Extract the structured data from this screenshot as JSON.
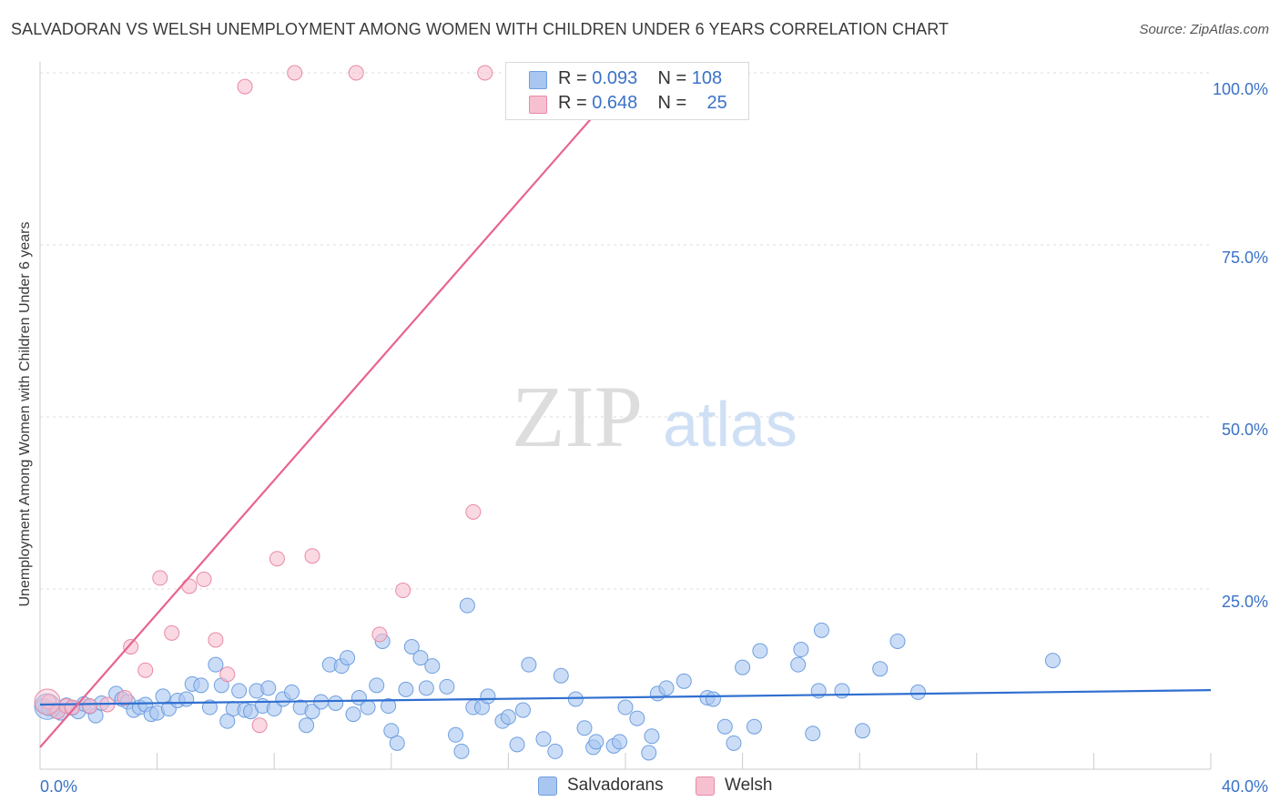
{
  "title": "SALVADORAN VS WELSH UNEMPLOYMENT AMONG WOMEN WITH CHILDREN UNDER 6 YEARS CORRELATION CHART",
  "source": "Source: ZipAtlas.com",
  "watermark": {
    "zip": "ZIP",
    "atlas": "atlas"
  },
  "legend": {
    "rows": [
      {
        "r_label": "R = ",
        "r_value": "0.093",
        "n_label": "N = ",
        "n_value": "108",
        "color": "#a9c6f0",
        "border": "#6f9fe0"
      },
      {
        "r_label": "R = ",
        "r_value": "0.648",
        "n_label": "N = ",
        "n_value": "25",
        "color": "#f7c0d0",
        "border": "#e88aa6"
      }
    ]
  },
  "bottom_legend": [
    {
      "label": "Salvadorans",
      "color": "#a9c6f0",
      "border": "#6f9fe0"
    },
    {
      "label": "Welsh",
      "color": "#f7c0d0",
      "border": "#e88aa6"
    }
  ],
  "colors": {
    "blue_line": "#2f6fd0",
    "pink_line": "#e8648e",
    "tick_text": "#3a72c8",
    "grid": "#dcdcdc"
  },
  "chart_data": {
    "type": "scatter",
    "xlabel": "",
    "ylabel": "Unemployment Among Women with Children Under 6 years",
    "xlim": [
      0,
      40
    ],
    "ylim": [
      0,
      100
    ],
    "x_tick_labels": [
      {
        "value": 0,
        "label": "0.0%"
      },
      {
        "value": 40,
        "label": "40.0%"
      }
    ],
    "y_tick_labels": [
      {
        "value": 100,
        "label": "100.0%"
      },
      {
        "value": 75,
        "label": "75.0%"
      },
      {
        "value": 50,
        "label": "50.0%"
      },
      {
        "value": 25,
        "label": "25.0%"
      }
    ],
    "grid": true,
    "series": [
      {
        "name": "Salvadorans",
        "color": "#a9c6f0",
        "trend": {
          "x": [
            0,
            40
          ],
          "y": [
            8.2,
            10.3
          ]
        },
        "points": [
          [
            0.2,
            7.8
          ],
          [
            0.5,
            7.4
          ],
          [
            0.7,
            7.0
          ],
          [
            0.9,
            8.1
          ],
          [
            1.1,
            7.7
          ],
          [
            1.3,
            7.2
          ],
          [
            1.5,
            8.3
          ],
          [
            1.7,
            7.9
          ],
          [
            1.9,
            6.6
          ],
          [
            2.1,
            8.4
          ],
          [
            2.6,
            9.8
          ],
          [
            2.8,
            9.0
          ],
          [
            3.0,
            8.6
          ],
          [
            3.2,
            7.4
          ],
          [
            3.4,
            7.8
          ],
          [
            3.6,
            8.2
          ],
          [
            3.8,
            6.8
          ],
          [
            4.0,
            7.0
          ],
          [
            4.2,
            9.4
          ],
          [
            4.4,
            7.6
          ],
          [
            4.7,
            8.8
          ],
          [
            5.0,
            9.0
          ],
          [
            5.2,
            11.2
          ],
          [
            5.5,
            11.0
          ],
          [
            5.8,
            7.8
          ],
          [
            6.0,
            14.0
          ],
          [
            6.2,
            11.0
          ],
          [
            6.4,
            5.8
          ],
          [
            6.6,
            7.6
          ],
          [
            6.8,
            10.2
          ],
          [
            7.0,
            7.4
          ],
          [
            7.2,
            7.2
          ],
          [
            7.4,
            10.2
          ],
          [
            7.6,
            8.0
          ],
          [
            7.8,
            10.6
          ],
          [
            8.0,
            7.6
          ],
          [
            8.3,
            9.0
          ],
          [
            8.6,
            10.0
          ],
          [
            8.9,
            7.8
          ],
          [
            9.1,
            5.2
          ],
          [
            9.3,
            7.2
          ],
          [
            9.6,
            8.6
          ],
          [
            9.9,
            14.0
          ],
          [
            10.1,
            8.4
          ],
          [
            10.3,
            13.8
          ],
          [
            10.5,
            15.0
          ],
          [
            10.7,
            6.8
          ],
          [
            10.9,
            9.2
          ],
          [
            11.2,
            7.8
          ],
          [
            11.5,
            11.0
          ],
          [
            11.7,
            17.4
          ],
          [
            11.9,
            8.0
          ],
          [
            12.0,
            4.4
          ],
          [
            12.2,
            2.6
          ],
          [
            12.5,
            10.4
          ],
          [
            12.7,
            16.6
          ],
          [
            13.0,
            15.0
          ],
          [
            13.2,
            10.6
          ],
          [
            13.4,
            13.8
          ],
          [
            13.9,
            10.8
          ],
          [
            14.2,
            3.8
          ],
          [
            14.4,
            1.4
          ],
          [
            14.6,
            22.6
          ],
          [
            14.8,
            7.8
          ],
          [
            15.1,
            7.8
          ],
          [
            15.3,
            9.4
          ],
          [
            15.8,
            5.8
          ],
          [
            16.0,
            6.4
          ],
          [
            16.3,
            2.4
          ],
          [
            16.5,
            7.4
          ],
          [
            16.7,
            14.0
          ],
          [
            17.2,
            3.2
          ],
          [
            17.6,
            1.4
          ],
          [
            17.8,
            12.4
          ],
          [
            18.3,
            9.0
          ],
          [
            18.6,
            4.8
          ],
          [
            18.9,
            2.0
          ],
          [
            19.0,
            2.8
          ],
          [
            19.6,
            2.2
          ],
          [
            19.8,
            2.8
          ],
          [
            20.0,
            7.8
          ],
          [
            20.4,
            6.2
          ],
          [
            20.8,
            1.2
          ],
          [
            20.9,
            3.6
          ],
          [
            21.1,
            9.8
          ],
          [
            21.4,
            10.6
          ],
          [
            22.0,
            11.6
          ],
          [
            22.8,
            9.2
          ],
          [
            23.0,
            9.0
          ],
          [
            23.4,
            5.0
          ],
          [
            23.7,
            2.6
          ],
          [
            24.0,
            13.6
          ],
          [
            24.4,
            5.0
          ],
          [
            24.6,
            16.0
          ],
          [
            25.9,
            14.0
          ],
          [
            26.0,
            16.2
          ],
          [
            26.4,
            4.0
          ],
          [
            26.6,
            10.2
          ],
          [
            26.7,
            19.0
          ],
          [
            27.4,
            10.2
          ],
          [
            28.1,
            4.4
          ],
          [
            28.7,
            13.4
          ],
          [
            29.3,
            17.4
          ],
          [
            30.0,
            10.0
          ],
          [
            34.6,
            14.6
          ],
          [
            0.1,
            8.0
          ],
          [
            0.3,
            7.6
          ],
          [
            0.6,
            7.2
          ]
        ]
      },
      {
        "name": "Welsh",
        "color": "#f7c0d0",
        "trend": {
          "x": [
            0,
            20.2
          ],
          "y": [
            2.0,
            100
          ]
        },
        "points": [
          [
            0.3,
            8.6
          ],
          [
            0.6,
            7.2
          ],
          [
            0.9,
            8.0
          ],
          [
            1.1,
            7.8
          ],
          [
            1.7,
            8.0
          ],
          [
            2.3,
            8.2
          ],
          [
            2.9,
            9.2
          ],
          [
            3.1,
            16.6
          ],
          [
            3.6,
            13.2
          ],
          [
            4.1,
            26.6
          ],
          [
            4.5,
            18.6
          ],
          [
            5.1,
            25.4
          ],
          [
            5.6,
            26.4
          ],
          [
            6.0,
            17.6
          ],
          [
            6.4,
            12.6
          ],
          [
            7.0,
            98.0
          ],
          [
            7.5,
            5.2
          ],
          [
            8.1,
            29.4
          ],
          [
            8.7,
            100
          ],
          [
            9.3,
            29.8
          ],
          [
            10.8,
            100
          ],
          [
            11.6,
            18.4
          ],
          [
            12.4,
            24.8
          ],
          [
            14.8,
            36.2
          ],
          [
            15.2,
            100
          ]
        ]
      }
    ]
  }
}
